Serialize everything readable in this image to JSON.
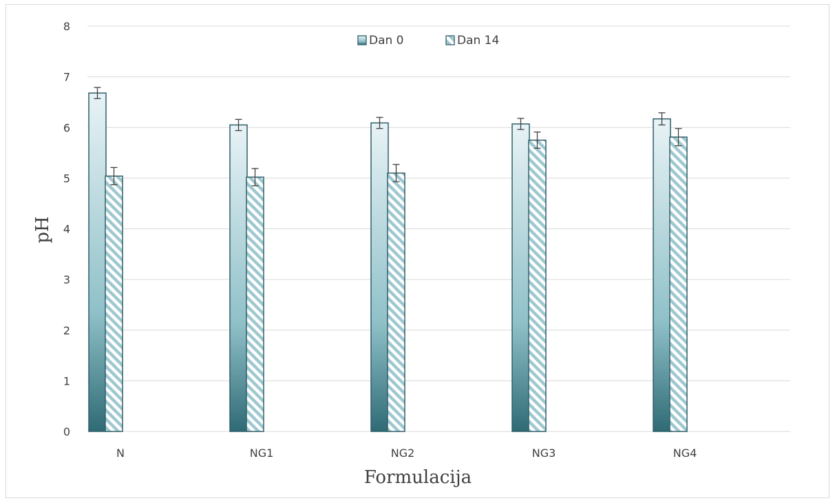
{
  "chart_data": {
    "type": "bar",
    "categories": [
      "N",
      "NG1",
      "NG2",
      "NG3",
      "NG4"
    ],
    "series": [
      {
        "name": "Dan 0",
        "values": [
          6.68,
          6.05,
          6.09,
          6.07,
          6.17
        ],
        "errors": [
          0.11,
          0.11,
          0.11,
          0.11,
          0.12
        ],
        "fill": "gradient",
        "stroke": "#2f5e68"
      },
      {
        "name": "Dan 14",
        "values": [
          5.04,
          5.02,
          5.1,
          5.75,
          5.81
        ],
        "errors": [
          0.17,
          0.17,
          0.17,
          0.16,
          0.17
        ],
        "fill": "hatch",
        "stroke": "#2f5e68"
      }
    ],
    "xlabel": "Formulacija",
    "ylabel": "pH",
    "ylim": [
      0,
      8
    ],
    "yticks": [
      "0",
      "1",
      "2",
      "3",
      "4",
      "5",
      "6",
      "7",
      "8"
    ],
    "grid": true,
    "legend_position": "top-center",
    "colors": {
      "gradient_top": "#e8f3f6",
      "gradient_mid": "#8fc0c8",
      "gradient_bottom": "#2f6b75",
      "hatch": "#9ec8d0",
      "gridline": "#d9d9d9",
      "error_bar": "#404040"
    }
  }
}
